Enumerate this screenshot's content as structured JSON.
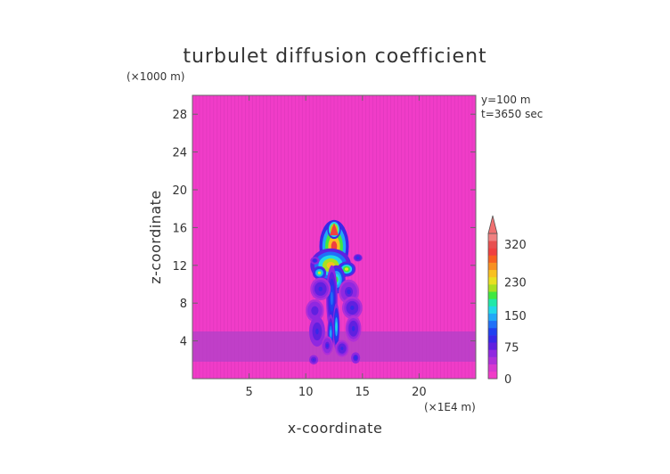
{
  "chart_data": {
    "type": "heatmap",
    "title": "turbulet diffusion coefficient",
    "xlabel": "x-coordinate",
    "ylabel": "z-coordinate",
    "x_unit": "(×1E4 m)",
    "y_unit": "(×1000 m)",
    "annotations": [
      "y=100 m",
      "t=3650 sec"
    ],
    "xlim": [
      0,
      25
    ],
    "ylim": [
      0,
      30
    ],
    "x_ticks": [
      5,
      10,
      15,
      20
    ],
    "y_ticks": [
      4,
      8,
      12,
      16,
      20,
      24,
      28
    ],
    "colorbar": {
      "levels": [
        0,
        75,
        150,
        230,
        320
      ],
      "labels": [
        "0",
        "75",
        "150",
        "230",
        "320"
      ],
      "extend": "max",
      "colors": [
        "#f03cc8",
        "#d838d0",
        "#b030d8",
        "#9028e0",
        "#6020e0",
        "#3828e8",
        "#2040f0",
        "#2070f8",
        "#20a8f8",
        "#20d8e8",
        "#20e8a8",
        "#40e840",
        "#a8e020",
        "#e8e020",
        "#f8c020",
        "#f89020",
        "#f86020",
        "#f04040",
        "#e85050",
        "#f08080"
      ]
    },
    "field_description_values": {
      "background": 0,
      "boundary_layer_top_z": 5,
      "boundary_layer_value": 20,
      "plume_center_x": 12.5,
      "plume_top_z": 16.5,
      "plume_max_value": 320
    }
  }
}
